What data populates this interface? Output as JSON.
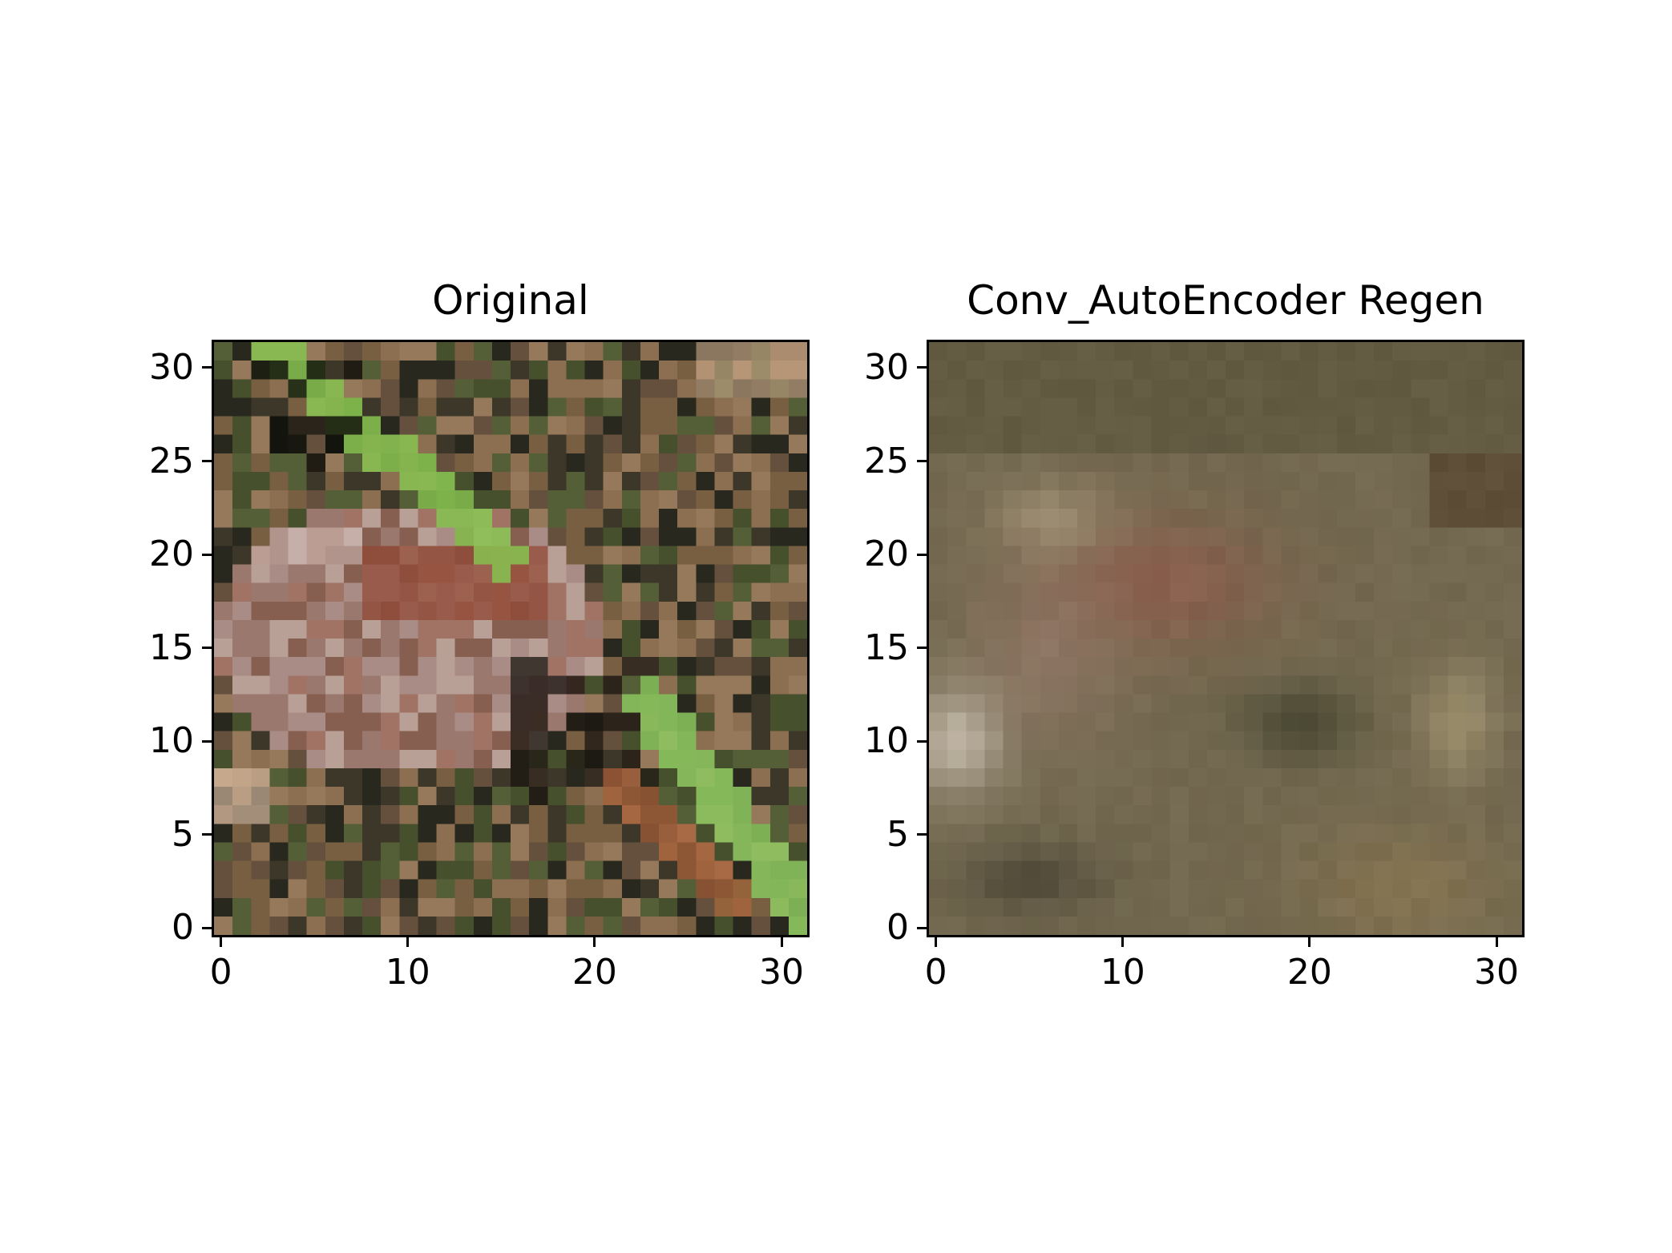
{
  "chart_data": [
    {
      "type": "heatmap",
      "title": "Original",
      "image_size": [
        32,
        32
      ],
      "xticks": [
        0,
        10,
        20,
        30
      ],
      "yticks": [
        0,
        5,
        10,
        15,
        20,
        25,
        30
      ],
      "xlim": [
        -0.5,
        31.5
      ],
      "ylim": [
        31.5,
        -0.5
      ],
      "grid": false,
      "content": "low-resolution 32x32 RGB photo: diagonal bright green grass blades at upper-left and lower-right, pinkish-brown frog in the center on brown/olive ground",
      "palette": [
        "#8ac34f",
        "#9f7a63",
        "#8b4a33",
        "#b79a8f",
        "#4e5a33",
        "#1c1b12",
        "#c3a88e",
        "#6d6a45"
      ]
    },
    {
      "type": "heatmap",
      "title": "Conv_AutoEncoder Regen",
      "image_size": [
        32,
        32
      ],
      "xticks": [
        0,
        10,
        20,
        30
      ],
      "yticks": [
        0,
        5,
        10,
        15,
        20,
        25,
        30
      ],
      "xlim": [
        -0.5,
        31.5
      ],
      "ylim": [
        31.5,
        -0.5
      ],
      "grid": false,
      "content": "blurred reconstruction of the same image: muted olive-brown tones, dark band near the top, soft pinkish-brown blob in the center, lighter area at left",
      "palette": [
        "#6e6445",
        "#5a5335",
        "#8a6a50",
        "#9c8373",
        "#c8beb0",
        "#4a4630",
        "#a39774",
        "#8d7a52"
      ]
    }
  ]
}
